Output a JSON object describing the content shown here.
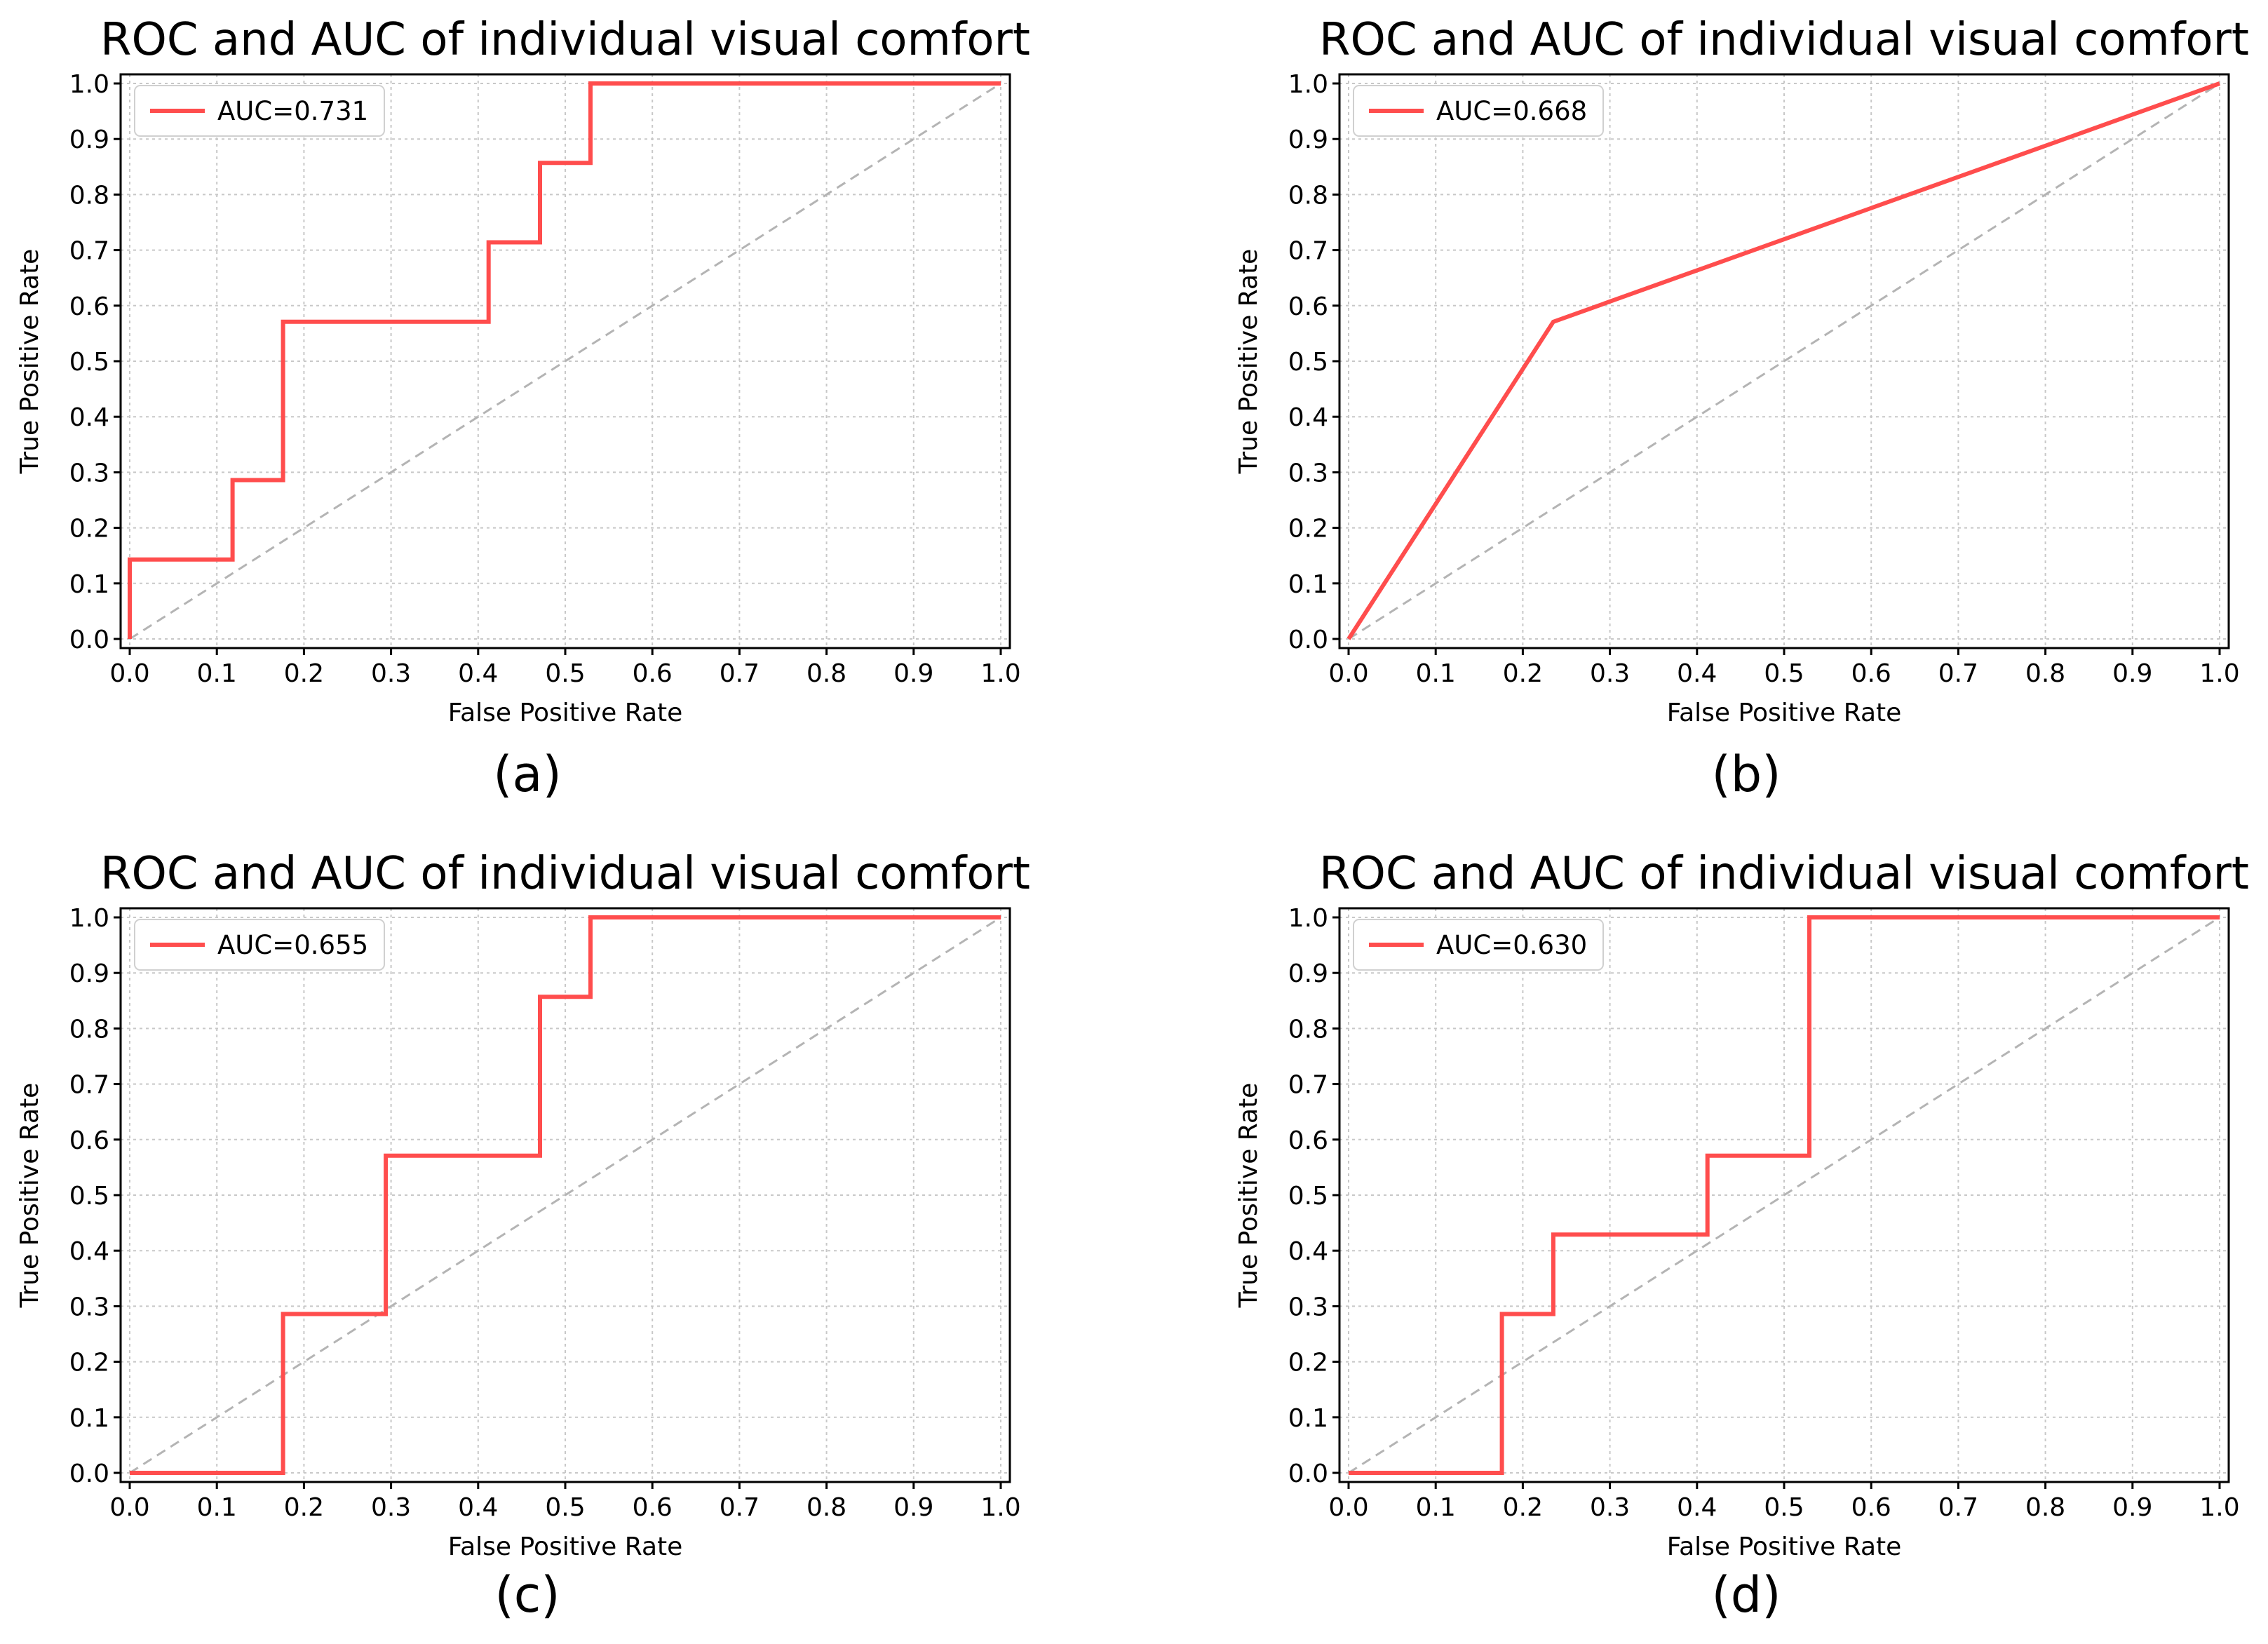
{
  "chart_data": [
    {
      "type": "line",
      "title": "ROC and AUC of individual visual comfort",
      "xlabel": "False Positive Rate",
      "ylabel": "True Positive Rate",
      "caption": "(a)",
      "xlim": [
        0,
        1
      ],
      "ylim": [
        0,
        1
      ],
      "grid": true,
      "legend_position": "top-left",
      "xticks": [
        "0.0",
        "0.1",
        "0.2",
        "0.3",
        "0.4",
        "0.5",
        "0.6",
        "0.7",
        "0.8",
        "0.9",
        "1.0"
      ],
      "yticks": [
        "0.0",
        "0.1",
        "0.2",
        "0.3",
        "0.4",
        "0.5",
        "0.6",
        "0.7",
        "0.8",
        "0.9",
        "1.0"
      ],
      "series": [
        {
          "name": "AUC=0.731",
          "color": "#ff4d4d",
          "x": [
            0.0,
            0.0,
            0.118,
            0.118,
            0.176,
            0.176,
            0.412,
            0.412,
            0.471,
            0.471,
            0.529,
            0.529,
            1.0
          ],
          "y": [
            0.0,
            0.143,
            0.143,
            0.286,
            0.286,
            0.571,
            0.571,
            0.714,
            0.714,
            0.857,
            0.857,
            1.0,
            1.0
          ]
        }
      ],
      "reference_line": {
        "x": [
          0,
          1
        ],
        "y": [
          0,
          1
        ],
        "style": "dashed",
        "color": "#b4b4b4"
      }
    },
    {
      "type": "line",
      "title": "ROC and AUC of individual visual comfort",
      "xlabel": "False Positive Rate",
      "ylabel": "True Positive Rate",
      "caption": "(b)",
      "xlim": [
        0,
        1
      ],
      "ylim": [
        0,
        1
      ],
      "grid": true,
      "legend_position": "top-left",
      "xticks": [
        "0.0",
        "0.1",
        "0.2",
        "0.3",
        "0.4",
        "0.5",
        "0.6",
        "0.7",
        "0.8",
        "0.9",
        "1.0"
      ],
      "yticks": [
        "0.0",
        "0.1",
        "0.2",
        "0.3",
        "0.4",
        "0.5",
        "0.6",
        "0.7",
        "0.8",
        "0.9",
        "1.0"
      ],
      "series": [
        {
          "name": "AUC=0.668",
          "color": "#ff4d4d",
          "x": [
            0.0,
            0.235,
            1.0
          ],
          "y": [
            0.0,
            0.571,
            1.0
          ]
        }
      ],
      "reference_line": {
        "x": [
          0,
          1
        ],
        "y": [
          0,
          1
        ],
        "style": "dashed",
        "color": "#b4b4b4"
      }
    },
    {
      "type": "line",
      "title": "ROC and AUC of individual visual comfort",
      "xlabel": "False Positive Rate",
      "ylabel": "True Positive Rate",
      "caption": "(c)",
      "xlim": [
        0,
        1
      ],
      "ylim": [
        0,
        1
      ],
      "grid": true,
      "legend_position": "top-left",
      "xticks": [
        "0.0",
        "0.1",
        "0.2",
        "0.3",
        "0.4",
        "0.5",
        "0.6",
        "0.7",
        "0.8",
        "0.9",
        "1.0"
      ],
      "yticks": [
        "0.0",
        "0.1",
        "0.2",
        "0.3",
        "0.4",
        "0.5",
        "0.6",
        "0.7",
        "0.8",
        "0.9",
        "1.0"
      ],
      "series": [
        {
          "name": "AUC=0.655",
          "color": "#ff4d4d",
          "x": [
            0.0,
            0.176,
            0.176,
            0.294,
            0.294,
            0.471,
            0.471,
            0.529,
            0.529,
            1.0
          ],
          "y": [
            0.0,
            0.0,
            0.286,
            0.286,
            0.571,
            0.571,
            0.857,
            0.857,
            1.0,
            1.0
          ]
        }
      ],
      "reference_line": {
        "x": [
          0,
          1
        ],
        "y": [
          0,
          1
        ],
        "style": "dashed",
        "color": "#b4b4b4"
      }
    },
    {
      "type": "line",
      "title": "ROC and AUC of individual visual comfort",
      "xlabel": "False Positive Rate",
      "ylabel": "True Positive Rate",
      "caption": "(d)",
      "xlim": [
        0,
        1
      ],
      "ylim": [
        0,
        1
      ],
      "grid": true,
      "legend_position": "top-left",
      "xticks": [
        "0.0",
        "0.1",
        "0.2",
        "0.3",
        "0.4",
        "0.5",
        "0.6",
        "0.7",
        "0.8",
        "0.9",
        "1.0"
      ],
      "yticks": [
        "0.0",
        "0.1",
        "0.2",
        "0.3",
        "0.4",
        "0.5",
        "0.6",
        "0.7",
        "0.8",
        "0.9",
        "1.0"
      ],
      "series": [
        {
          "name": "AUC=0.630",
          "color": "#ff4d4d",
          "x": [
            0.0,
            0.176,
            0.176,
            0.235,
            0.235,
            0.412,
            0.412,
            0.529,
            0.529,
            1.0
          ],
          "y": [
            0.0,
            0.0,
            0.286,
            0.286,
            0.429,
            0.429,
            0.571,
            0.571,
            1.0,
            1.0
          ]
        }
      ],
      "reference_line": {
        "x": [
          0,
          1
        ],
        "y": [
          0,
          1
        ],
        "style": "dashed",
        "color": "#b4b4b4"
      }
    }
  ]
}
